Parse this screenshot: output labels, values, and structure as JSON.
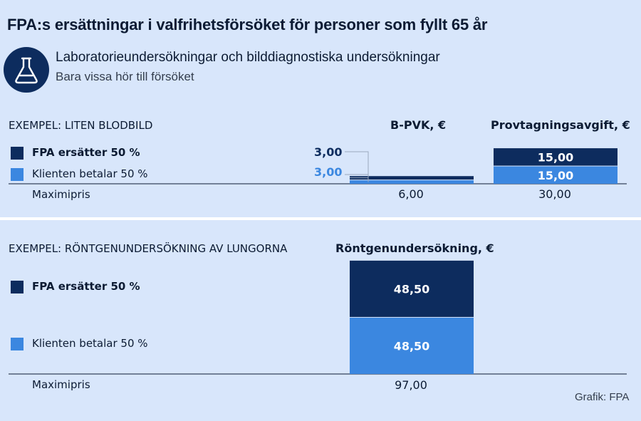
{
  "header": {
    "title": "FPA:s ersättningar i valfrihetsförsöket för personer som fyllt 65 år",
    "subtitle": "Laboratorieundersökningar och bilddiagnostiska undersökningar",
    "note": "Bara vissa hör till försöket",
    "icon": "flask-icon"
  },
  "credit": "Grafik: FPA",
  "colors": {
    "fpa": "#0d2c5e",
    "client": "#3b87e0",
    "background": "#d8e6fb"
  },
  "chart_data": [
    {
      "type": "bar",
      "stacked": true,
      "section_label": "EXEMPEL: LITEN BLODBILD",
      "categories": [
        "B-PVK, €",
        "Provtagningsavgift, €"
      ],
      "series": [
        {
          "name": "FPA ersätter 50 %",
          "values": [
            3.0,
            15.0
          ],
          "labels": [
            "3,00",
            "15,00"
          ]
        },
        {
          "name": "Klienten betalar 50 %",
          "values": [
            3.0,
            15.0
          ],
          "labels": [
            "3,00",
            "15,00"
          ]
        }
      ],
      "total_label": "Maximipris",
      "totals": [
        "6,00",
        "30,00"
      ],
      "ylim": [
        0,
        97
      ]
    },
    {
      "type": "bar",
      "stacked": true,
      "section_label": "EXEMPEL: RÖNTGENUNDERSÖKNING AV LUNGORNA",
      "categories": [
        "Röntgenundersökning, €"
      ],
      "series": [
        {
          "name": "FPA ersätter 50 %",
          "values": [
            48.5
          ],
          "labels": [
            "48,50"
          ]
        },
        {
          "name": "Klienten betalar 50 %",
          "values": [
            48.5
          ],
          "labels": [
            "48,50"
          ]
        }
      ],
      "total_label": "Maximipris",
      "totals": [
        "97,00"
      ],
      "ylim": [
        0,
        97
      ]
    }
  ]
}
